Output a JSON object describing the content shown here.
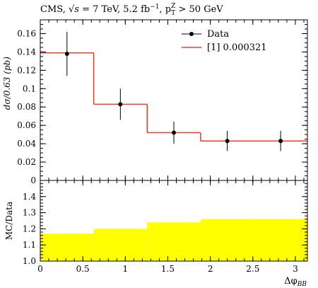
{
  "title": {
    "pre": "CMS, ",
    "sqrt_s": "7",
    "energy_unit": "TeV, 5.2 fb",
    "lumi_exp": "−1",
    "cut_pre": ", p",
    "cut_sub": "T",
    "cut_sup": "Z",
    "cut_post": " > 50 GeV"
  },
  "colors": {
    "mc": "#e8412a",
    "data": "#000000",
    "ratio_band": "#ffff00"
  },
  "chart_data": [
    {
      "type": "line",
      "ylabel": "dσ/0.63 (pb)",
      "ylim": [
        0,
        0.175
      ],
      "yticks": [
        0,
        0.02,
        0.04,
        0.06,
        0.08,
        0.1,
        0.12,
        0.14,
        0.16
      ],
      "ytick_labels": [
        "0",
        "0.02",
        "0.04",
        "0.06",
        "0.08",
        "0.1",
        "0.12",
        "0.14",
        "0.16"
      ],
      "xlim": [
        0,
        3.1416
      ],
      "bin_edges": [
        0,
        0.628,
        1.257,
        1.885,
        2.513,
        3.1416
      ],
      "legend_position": "top-right",
      "series": [
        {
          "name": "Data",
          "style": "points-with-errors",
          "x": [
            0.314,
            0.942,
            1.571,
            2.199,
            2.827
          ],
          "values": [
            0.138,
            0.083,
            0.052,
            0.043,
            0.043
          ],
          "err": [
            0.024,
            0.017,
            0.012,
            0.011,
            0.011
          ]
        },
        {
          "name": "[1] 0.000321",
          "style": "step",
          "values": [
            0.139,
            0.083,
            0.052,
            0.043,
            0.043
          ]
        }
      ]
    },
    {
      "type": "area",
      "ylabel": "MC/Data",
      "xlabel": "Δφ",
      "xlabel_sub": "BB",
      "xlim": [
        0,
        3.1416
      ],
      "ylim": [
        1.0,
        1.5
      ],
      "yticks": [
        1.0,
        1.1,
        1.2,
        1.3,
        1.4
      ],
      "ytick_labels": [
        "1.0",
        "1.1",
        "1.2",
        "1.3",
        "1.4"
      ],
      "xticks": [
        0,
        0.5,
        1,
        1.5,
        2,
        2.5,
        3
      ],
      "xtick_labels": [
        "0",
        "0.5",
        "1",
        "1.5",
        "2",
        "2.5",
        "3"
      ],
      "bin_edges": [
        0,
        0.628,
        1.257,
        1.885,
        2.513,
        3.1416
      ],
      "values": [
        1.17,
        1.2,
        1.24,
        1.26,
        1.26
      ]
    }
  ]
}
